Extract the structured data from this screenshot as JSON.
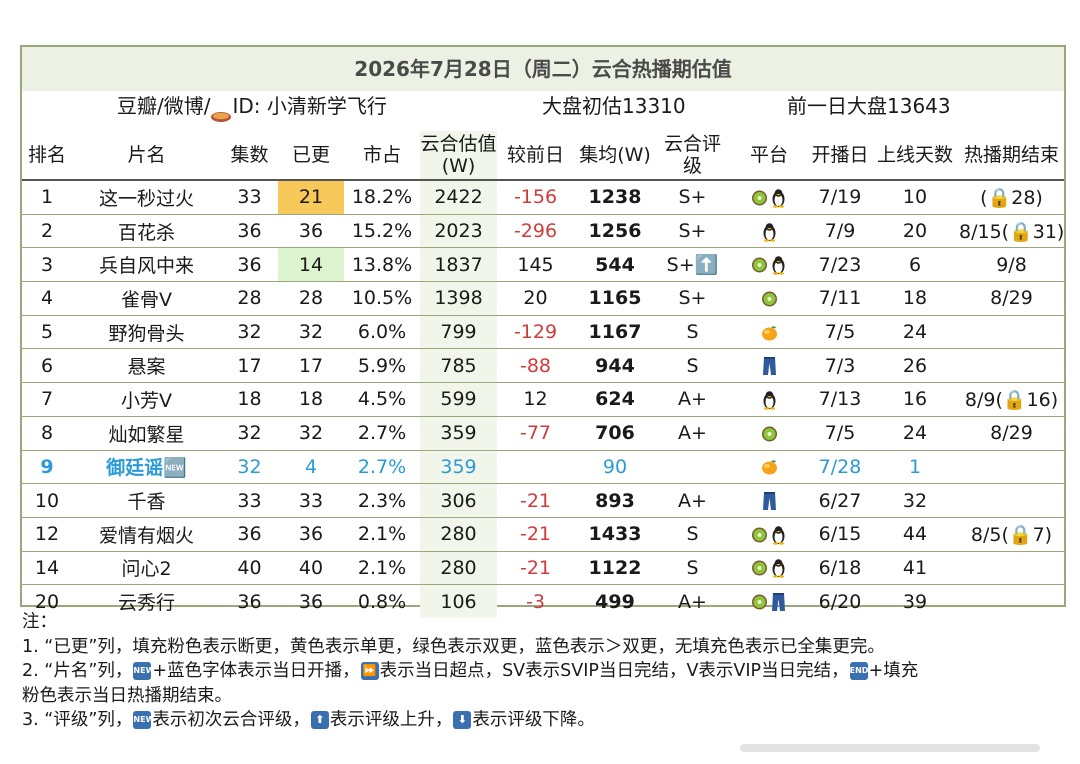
{
  "title": "2026年7月28日（周二）云合热播期估值",
  "info": {
    "source": "豆瓣/微博/",
    "id_label": "ID: 小清新学飞行",
    "market_initial": "大盘初估13310",
    "market_prev": "前一日大盘13643"
  },
  "headers": [
    "排名",
    "片名",
    "集数",
    "已更",
    "市占",
    "云合估值(W)",
    "较前日",
    "集均(W)",
    "云合评级",
    "平台",
    "开播日",
    "上线天数",
    "热播期结束"
  ],
  "rows": [
    {
      "rank": "1",
      "name": "这一秒过火",
      "eps": "33",
      "upd": "21",
      "share": "18.2%",
      "val": "2422",
      "diff": "-156",
      "avg": "1238",
      "grade": "S+",
      "platforms": [
        "kiwi",
        "penguin"
      ],
      "start": "7/19",
      "days": "10",
      "end": "(🔒28)"
    },
    {
      "rank": "2",
      "name": "百花杀",
      "eps": "36",
      "upd": "36",
      "share": "15.2%",
      "val": "2023",
      "diff": "-296",
      "avg": "1256",
      "grade": "S+",
      "platforms": [
        "penguin"
      ],
      "start": "7/9",
      "days": "20",
      "end": "8/15(🔒31)"
    },
    {
      "rank": "3",
      "name": "兵自风中来",
      "eps": "36",
      "upd": "14",
      "share": "13.8%",
      "val": "1837",
      "diff": "145",
      "avg": "544",
      "grade": "S+⬆️",
      "platforms": [
        "kiwi",
        "penguin"
      ],
      "start": "7/23",
      "days": "6",
      "end": "9/8"
    },
    {
      "rank": "4",
      "name": "雀骨V",
      "eps": "28",
      "upd": "28",
      "share": "10.5%",
      "val": "1398",
      "diff": "20",
      "avg": "1165",
      "grade": "S+",
      "platforms": [
        "kiwi"
      ],
      "start": "7/11",
      "days": "18",
      "end": "8/29"
    },
    {
      "rank": "5",
      "name": "野狗骨头",
      "eps": "32",
      "upd": "32",
      "share": "6.0%",
      "val": "799",
      "diff": "-129",
      "avg": "1167",
      "grade": "S",
      "platforms": [
        "mango"
      ],
      "start": "7/5",
      "days": "24",
      "end": ""
    },
    {
      "rank": "6",
      "name": "悬案",
      "eps": "17",
      "upd": "17",
      "share": "5.9%",
      "val": "785",
      "diff": "-88",
      "avg": "944",
      "grade": "S",
      "platforms": [
        "jeans"
      ],
      "start": "7/3",
      "days": "26",
      "end": ""
    },
    {
      "rank": "7",
      "name": "小芳V",
      "eps": "18",
      "upd": "18",
      "share": "4.5%",
      "val": "599",
      "diff": "12",
      "avg": "624",
      "grade": "A+",
      "platforms": [
        "penguin"
      ],
      "start": "7/13",
      "days": "16",
      "end": "8/9(🔒16)"
    },
    {
      "rank": "8",
      "name": "灿如繁星",
      "eps": "32",
      "upd": "32",
      "share": "2.7%",
      "val": "359",
      "diff": "-77",
      "avg": "706",
      "grade": "A+",
      "platforms": [
        "kiwi"
      ],
      "start": "7/5",
      "days": "24",
      "end": "8/29"
    },
    {
      "rank": "9",
      "name": "御廷谣🆕",
      "eps": "32",
      "upd": "4",
      "share": "2.7%",
      "val": "359",
      "diff": "",
      "avg": "90",
      "grade": "",
      "platforms": [
        "mango"
      ],
      "start": "7/28",
      "days": "1",
      "end": ""
    },
    {
      "rank": "10",
      "name": "千香",
      "eps": "33",
      "upd": "33",
      "share": "2.3%",
      "val": "306",
      "diff": "-21",
      "avg": "893",
      "grade": "A+",
      "platforms": [
        "jeans"
      ],
      "start": "6/27",
      "days": "32",
      "end": ""
    },
    {
      "rank": "12",
      "name": "爱情有烟火",
      "eps": "36",
      "upd": "36",
      "share": "2.1%",
      "val": "280",
      "diff": "-21",
      "avg": "1433",
      "grade": "S",
      "platforms": [
        "kiwi",
        "penguin"
      ],
      "start": "6/15",
      "days": "44",
      "end": "8/5(🔒7)"
    },
    {
      "rank": "14",
      "name": "问心2",
      "eps": "40",
      "upd": "40",
      "share": "2.1%",
      "val": "280",
      "diff": "-21",
      "avg": "1122",
      "grade": "S",
      "platforms": [
        "kiwi",
        "penguin"
      ],
      "start": "6/18",
      "days": "41",
      "end": ""
    },
    {
      "rank": "20",
      "name": "云秀行",
      "eps": "36",
      "upd": "36",
      "share": "0.8%",
      "val": "106",
      "diff": "-3",
      "avg": "499",
      "grade": "A+",
      "platforms": [
        "kiwi",
        "jeans"
      ],
      "start": "6/20",
      "days": "39",
      "end": ""
    }
  ],
  "colors": {
    "frame": "#9aa77a",
    "title_bg": "#edf1e4",
    "highlight_yellow": "#f7c85a",
    "highlight_green": "#dcf5d0",
    "negative": "#d23b3b",
    "new_blue": "#2b9bd6"
  },
  "notes": {
    "n0": "注：",
    "n1": "1. “已更”列，填充粉色表示断更，黄色表示单更，绿色表示双更，蓝色表示＞双更，无填充色表示已全集更完。",
    "n2a": "2. “片名”列，",
    "n2b": "+蓝色字体表示当日开播，",
    "n2c": "表示当日超点，SV表示SVIP当日完结，V表示VIP当日完结，",
    "n2d": "+填充",
    "n2e": "粉色表示当日热播期结束。",
    "n3a": "3. “评级”列，",
    "n3b": "表示初次云合评级，",
    "n3c": "表示评级上升，",
    "n3d": "表示评级下降。",
    "badge_new": "NEW",
    "badge_end": "END",
    "badge_ff": "⏩",
    "badge_up": "⬆",
    "badge_down": "⬇"
  }
}
